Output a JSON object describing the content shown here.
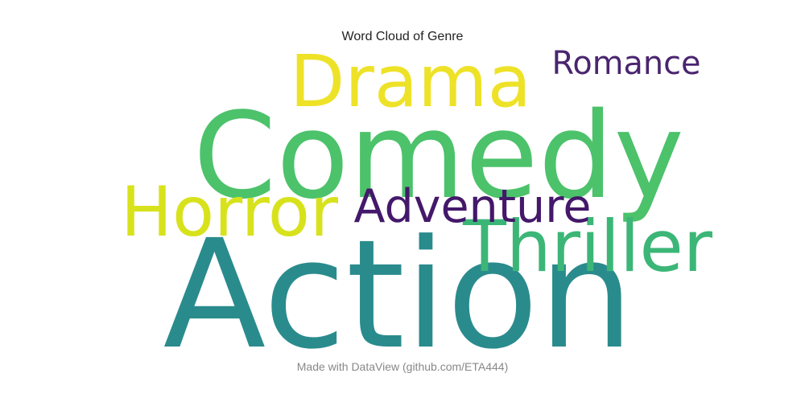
{
  "chart_data": {
    "type": "wordcloud",
    "title": "Word Cloud of Genre",
    "words": [
      {
        "text": "Comedy",
        "weight": 1.0,
        "color": "#4cc26b"
      },
      {
        "text": "Action",
        "weight": 0.95,
        "color": "#2a8b8d"
      },
      {
        "text": "Drama",
        "weight": 0.55,
        "color": "#eee228"
      },
      {
        "text": "Horror",
        "weight": 0.42,
        "color": "#d8e21c"
      },
      {
        "text": "Thriller",
        "weight": 0.4,
        "color": "#3cb677"
      },
      {
        "text": "Adventure",
        "weight": 0.36,
        "color": "#44186a"
      },
      {
        "text": "Romance",
        "weight": 0.28,
        "color": "#4a256f"
      }
    ]
  },
  "footer": "Made with DataView (github.com/ETA444)"
}
